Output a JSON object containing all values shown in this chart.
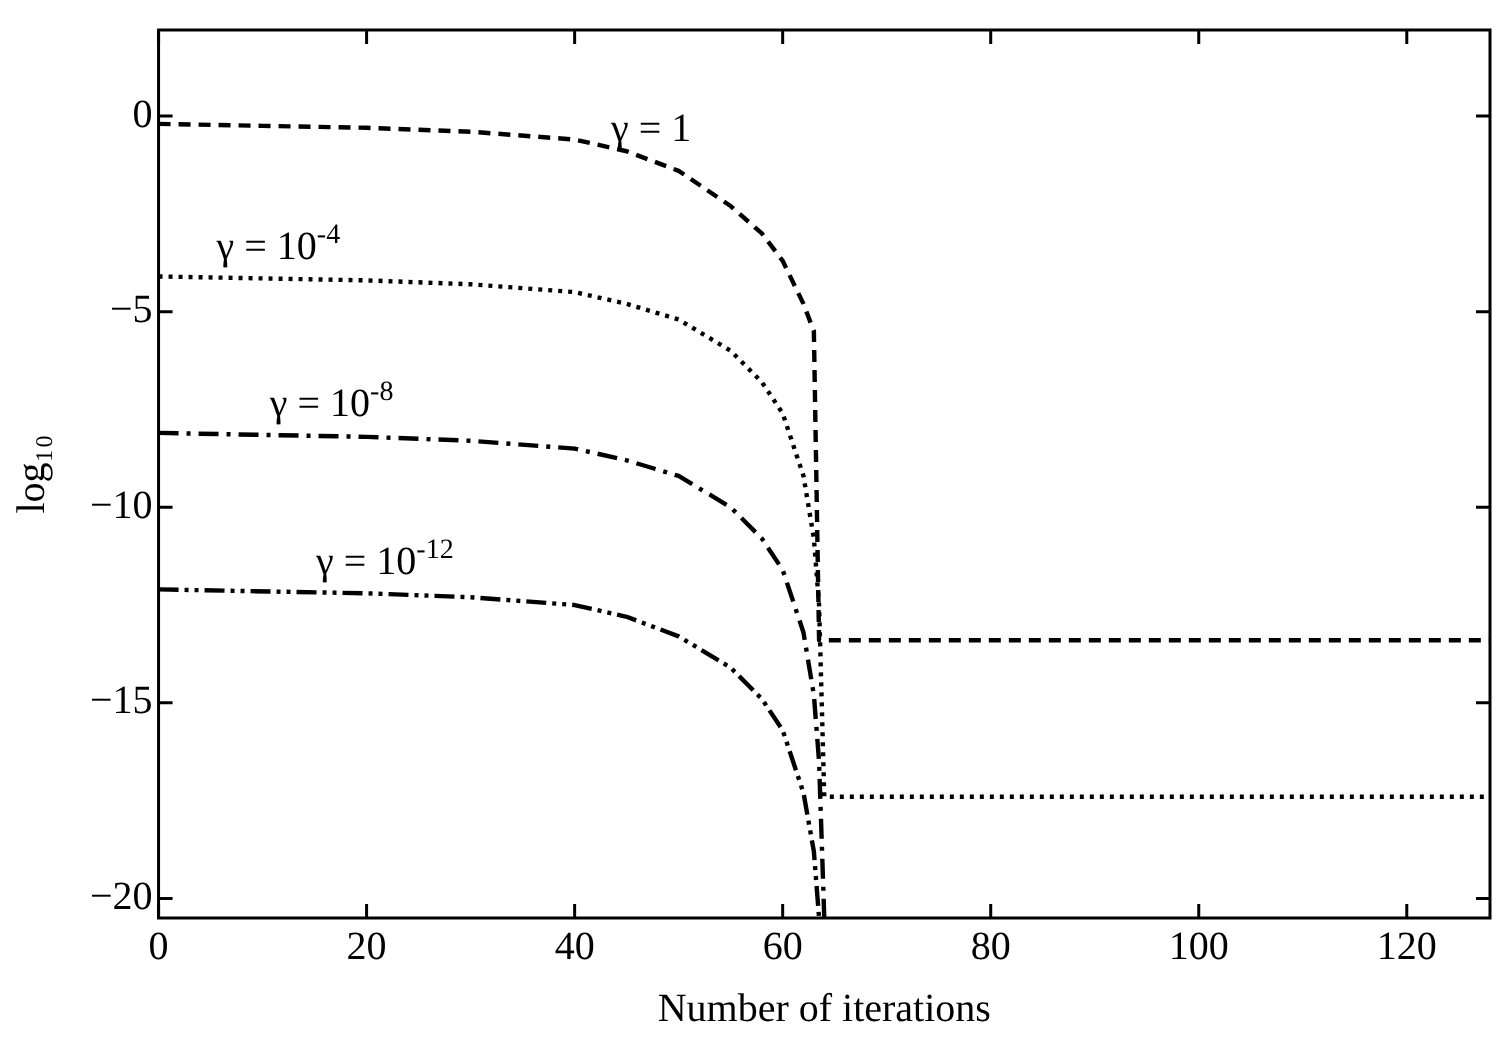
{
  "chart_data": {
    "type": "line",
    "xlabel": "Number of iterations",
    "ylabel": "log₁₀",
    "xlim": [
      0,
      128
    ],
    "xticks": [
      0,
      20,
      40,
      60,
      80,
      100,
      120
    ],
    "ylim": [
      -20.5,
      2.2
    ],
    "yticks": [
      -20,
      -15,
      -10,
      -5,
      0
    ],
    "grid": false,
    "legend": false,
    "marker": "none",
    "series": [
      {
        "name": "γ = 1",
        "color": "#000000",
        "line_style": "dashed",
        "x": [
          0,
          10,
          20,
          30,
          40,
          45,
          50,
          55,
          58,
          60,
          62,
          63,
          63.5,
          64,
          128
        ],
        "values": [
          -0.2,
          -0.25,
          -0.3,
          -0.4,
          -0.6,
          -0.9,
          -1.4,
          -2.3,
          -3,
          -3.7,
          -4.8,
          -5.5,
          -13.4,
          -13.4,
          -13.4
        ]
      },
      {
        "name": "γ = 10$^{-4}$",
        "color": "#000000",
        "line_style": "dotted",
        "x": [
          0,
          20,
          30,
          40,
          45,
          50,
          55,
          58,
          60,
          62,
          63,
          63.5,
          64,
          128
        ],
        "values": [
          -4.1,
          -4.2,
          -4.3,
          -4.5,
          -4.8,
          -5.2,
          -6,
          -6.8,
          -7.6,
          -9.2,
          -10.8,
          -12.5,
          -17.4,
          -17.4
        ]
      },
      {
        "name": "γ = 10$^{-8}$",
        "color": "#000000",
        "line_style": "dashdot",
        "x": [
          0,
          20,
          30,
          40,
          45,
          50,
          55,
          58,
          60,
          62,
          63,
          63.5,
          64
        ],
        "values": [
          -8.1,
          -8.2,
          -8.3,
          -8.5,
          -8.8,
          -9.2,
          -10,
          -10.8,
          -11.6,
          -13.2,
          -14.8,
          -16.5,
          -20.5
        ]
      },
      {
        "name": "γ = 10$^{-12}$",
        "color": "#000000",
        "line_style": "dashdotdot",
        "x": [
          0,
          20,
          30,
          40,
          45,
          50,
          55,
          58,
          60,
          62,
          63,
          63.5
        ],
        "values": [
          -12.1,
          -12.2,
          -12.3,
          -12.5,
          -12.8,
          -13.3,
          -14.1,
          -14.9,
          -15.7,
          -17.3,
          -18.8,
          -20.5
        ]
      }
    ]
  }
}
